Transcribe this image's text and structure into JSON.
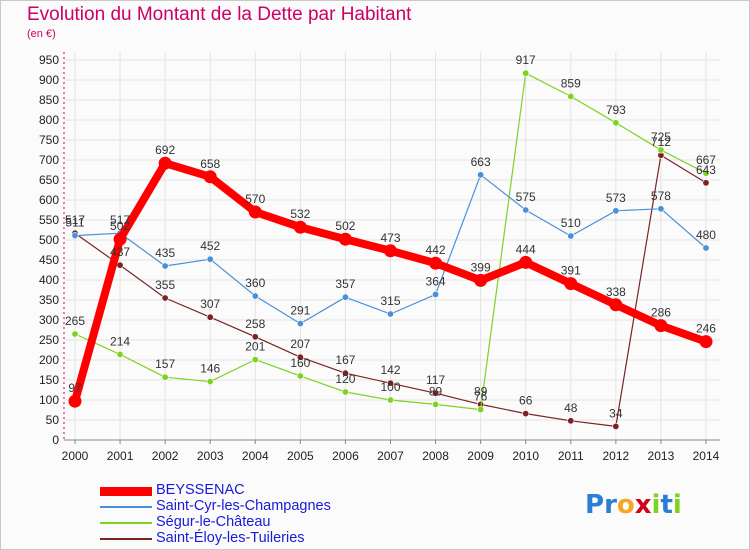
{
  "chart_data": {
    "type": "line",
    "title": "Evolution du Montant de la Dette par Habitant",
    "subtitle": "(en €)",
    "categories": [
      "2000",
      "2001",
      "2002",
      "2003",
      "2004",
      "2005",
      "2006",
      "2007",
      "2008",
      "2009",
      "2010",
      "2011",
      "2012",
      "2013",
      "2014"
    ],
    "ylim": [
      0,
      950
    ],
    "yticks": [
      0,
      50,
      100,
      150,
      200,
      250,
      300,
      350,
      400,
      450,
      500,
      550,
      600,
      650,
      700,
      750,
      800,
      850,
      900,
      950
    ],
    "grid": true,
    "legend_position": "bottom-left",
    "series": [
      {
        "name": "BEYSSENAC",
        "color": "#ff0000",
        "values": [
          97,
          502,
          692,
          658,
          570,
          532,
          502,
          473,
          442,
          399,
          444,
          391,
          338,
          286,
          246
        ]
      },
      {
        "name": "Saint-Cyr-les-Champagnes",
        "color": "#4a90d9",
        "values": [
          511,
          517,
          435,
          452,
          360,
          291,
          357,
          315,
          364,
          663,
          575,
          510,
          573,
          578,
          480
        ]
      },
      {
        "name": "Ségur-le-Château",
        "color": "#7ed321",
        "values": [
          265,
          214,
          157,
          146,
          201,
          160,
          120,
          100,
          89,
          76,
          917,
          859,
          793,
          725,
          667
        ]
      },
      {
        "name": "Saint-Éloy-les-Tuileries",
        "color": "#7b2323",
        "values": [
          517,
          437,
          355,
          307,
          258,
          207,
          167,
          142,
          117,
          89,
          66,
          48,
          34,
          712,
          643
        ]
      }
    ]
  },
  "logo": {
    "text": "Proxiti",
    "letters": [
      "P",
      "r",
      "o",
      "x",
      "i",
      "t",
      "i"
    ],
    "colors": [
      "#2a7fd4",
      "#2a7fd4",
      "#f5a623",
      "#d0021b",
      "#7ed321",
      "#2a7fd4",
      "#7ed321"
    ]
  }
}
